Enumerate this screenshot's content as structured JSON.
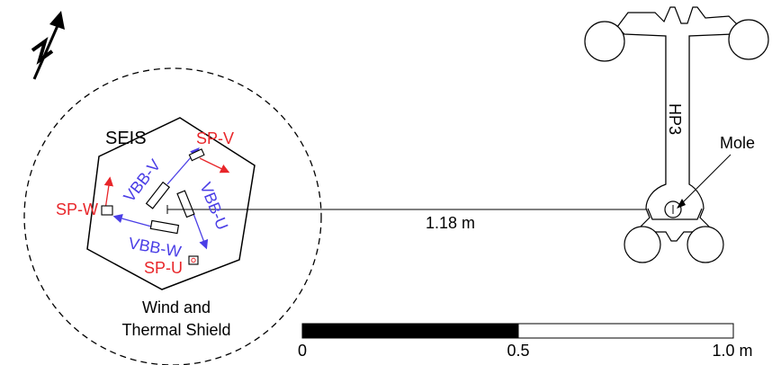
{
  "labels": {
    "seis": "SEIS",
    "shield_line1": "Wind and",
    "shield_line2": "Thermal Shield",
    "hp3": "HP3",
    "mole": "Mole",
    "distance": "1.18 m"
  },
  "sensors": {
    "sp_v": "SP-V",
    "sp_w": "SP-W",
    "sp_u": "SP-U",
    "vbb_v": "VBB-V",
    "vbb_u": "VBB-U",
    "vbb_w": "VBB-W"
  },
  "scale_bar": {
    "tick_0": "0",
    "tick_mid": "0.5",
    "tick_end": "1.0 m"
  },
  "colors": {
    "sp": "#e8262a",
    "vbb": "#4a3ee6",
    "ink": "#111111"
  },
  "icons": {
    "north": "north-arrow-icon"
  }
}
